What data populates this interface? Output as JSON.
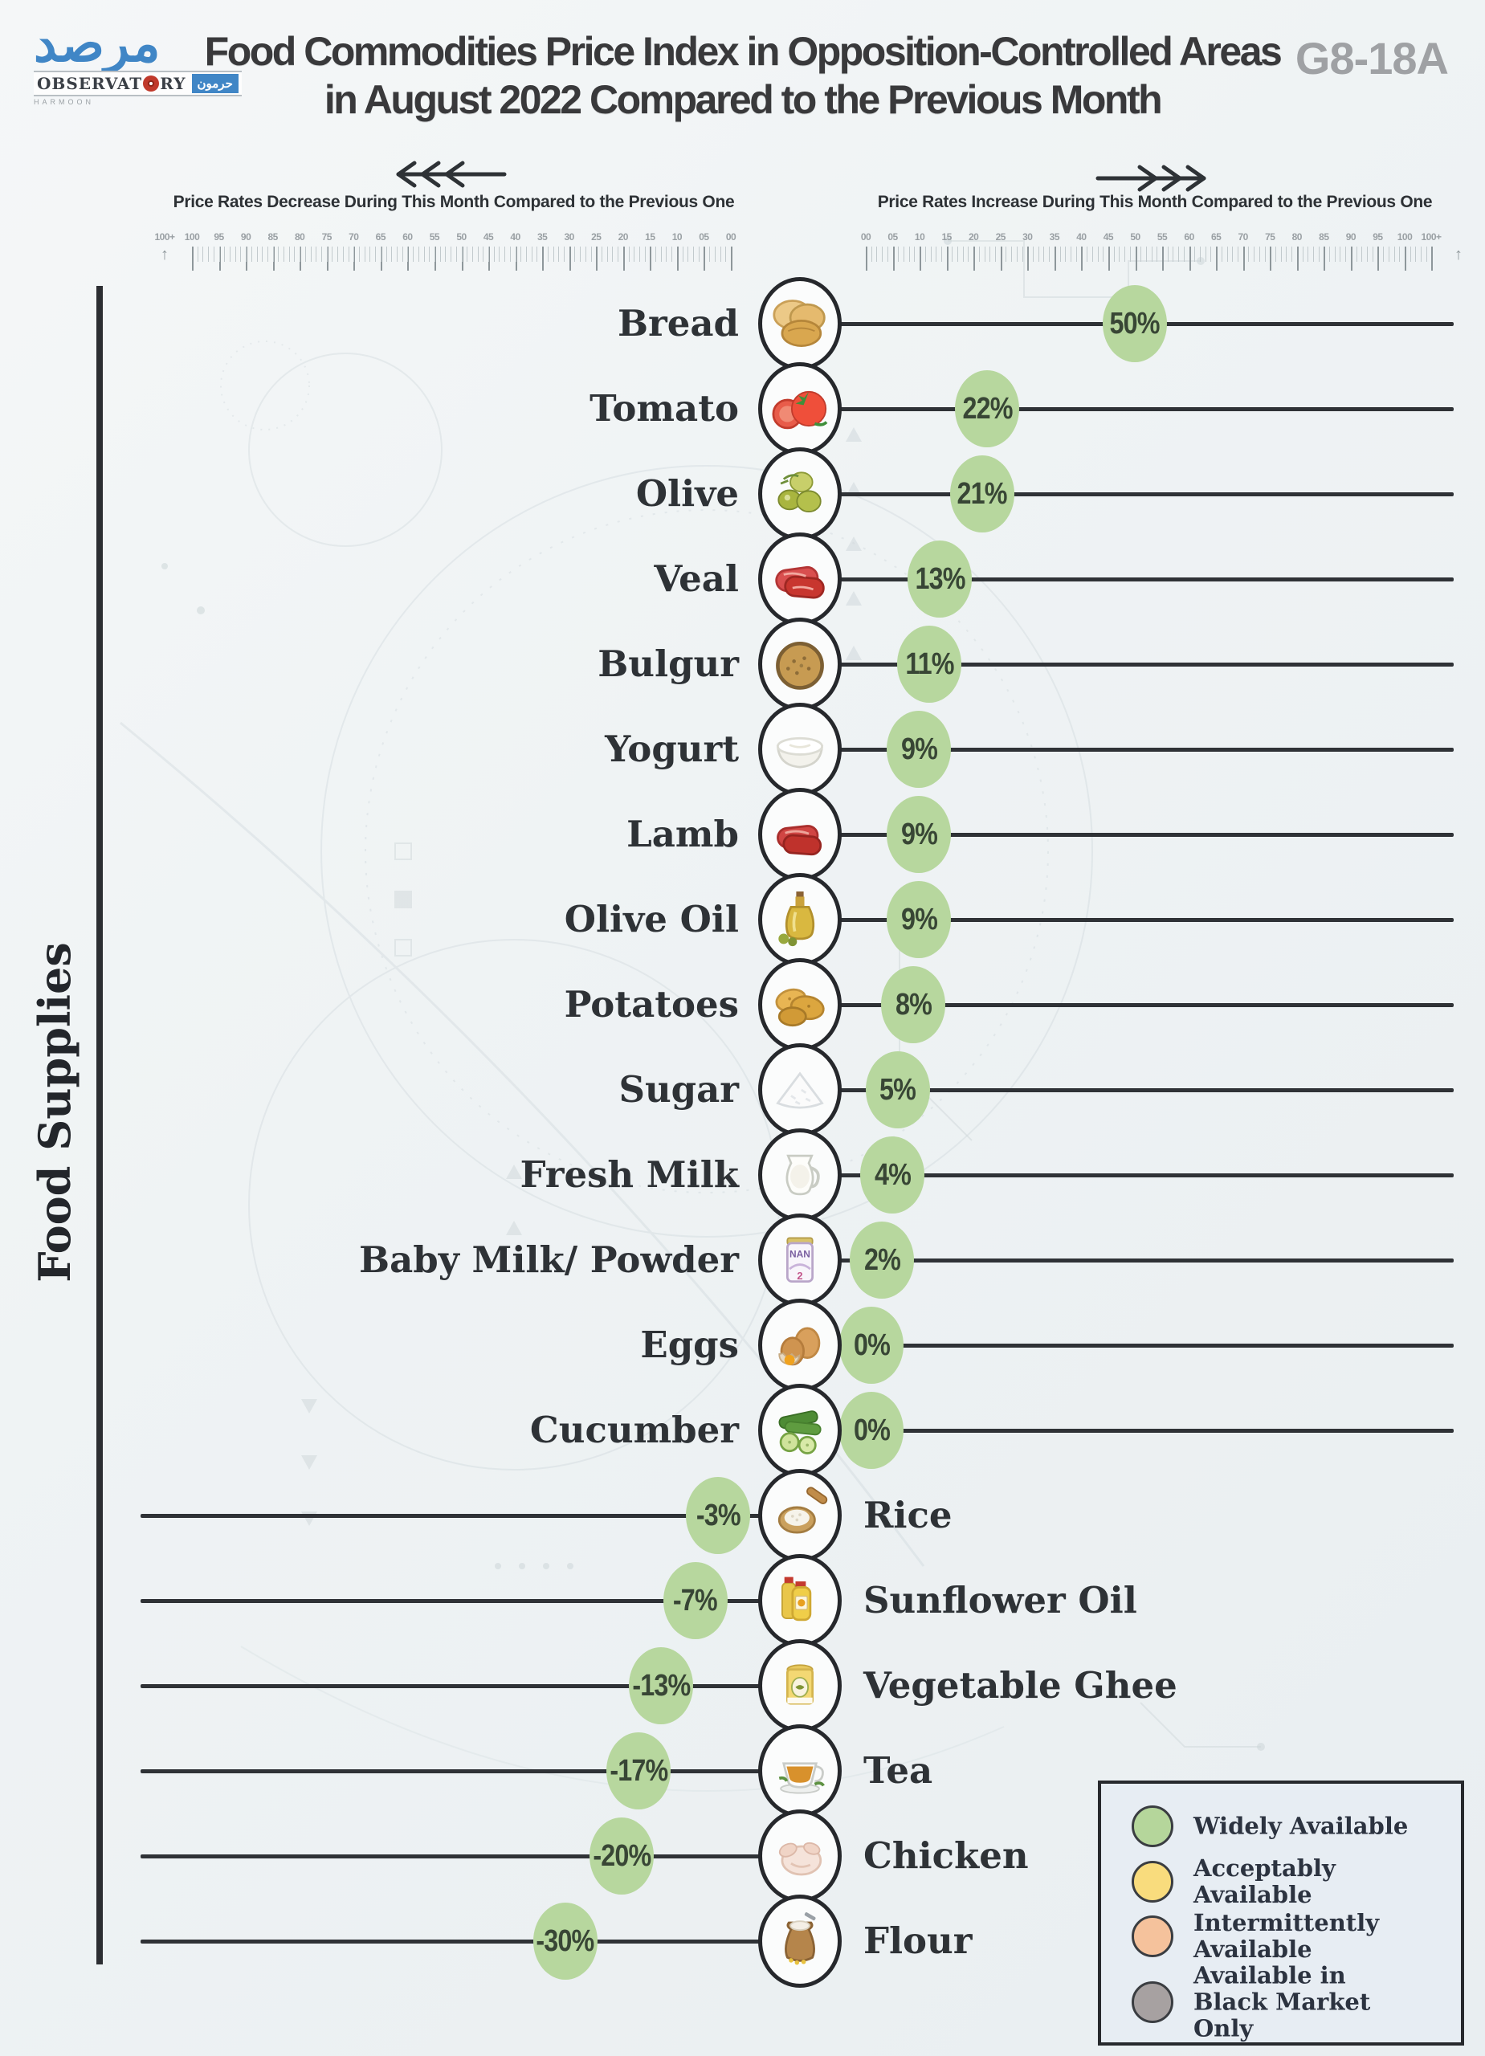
{
  "header": {
    "logo_arabic": "مرصد",
    "logo_observatory_left": "OBSERVAT",
    "logo_observatory_right": "RY",
    "logo_box_arabic": "حرمون",
    "logo_sub": "HARMOON",
    "title_line1": "Food  Commodities Price Index in Opposition-Controlled Areas",
    "title_line2": "in August 2022 Compared to the Previous Month",
    "code": "G8-18A"
  },
  "axis": {
    "decrease_label": "Price Rates Decrease During This Month Compared to the Previous One",
    "increase_label": "Price Rates Increase During This Month Compared to the Previous One",
    "left_ticks": [
      "100+",
      "100",
      "95",
      "90",
      "85",
      "80",
      "75",
      "70",
      "65",
      "60",
      "55",
      "50",
      "45",
      "40",
      "35",
      "30",
      "25",
      "20",
      "15",
      "10",
      "05",
      "00"
    ],
    "right_ticks": [
      "00",
      "05",
      "10",
      "15",
      "20",
      "25",
      "30",
      "35",
      "40",
      "45",
      "50",
      "55",
      "60",
      "65",
      "70",
      "75",
      "80",
      "85",
      "90",
      "95",
      "100",
      "100+"
    ],
    "y_axis_title": "Food Supplies"
  },
  "items": [
    {
      "label": "Bread",
      "display": "50%",
      "value": 50,
      "icon": "bread-icon",
      "availability": "Widely Available"
    },
    {
      "label": "Tomato",
      "display": "22%",
      "value": 22,
      "icon": "tomato-icon",
      "availability": "Widely Available"
    },
    {
      "label": "Olive",
      "display": "21%",
      "value": 21,
      "icon": "olive-icon",
      "availability": "Widely Available"
    },
    {
      "label": "Veal",
      "display": "13%",
      "value": 13,
      "icon": "veal-icon",
      "availability": "Widely Available"
    },
    {
      "label": "Bulgur",
      "display": "11%",
      "value": 11,
      "icon": "bulgur-icon",
      "availability": "Widely Available"
    },
    {
      "label": "Yogurt",
      "display": "9%",
      "value": 9,
      "icon": "yogurt-icon",
      "availability": "Widely Available"
    },
    {
      "label": "Lamb",
      "display": "9%",
      "value": 9,
      "icon": "lamb-icon",
      "availability": "Widely Available"
    },
    {
      "label": "Olive Oil",
      "display": "9%",
      "value": 9,
      "icon": "olive-oil-icon",
      "availability": "Widely Available"
    },
    {
      "label": "Potatoes",
      "display": "8%",
      "value": 8,
      "icon": "potatoes-icon",
      "availability": "Widely Available"
    },
    {
      "label": "Sugar",
      "display": "5%",
      "value": 5,
      "icon": "sugar-icon",
      "availability": "Widely Available"
    },
    {
      "label": "Fresh Milk",
      "display": "4%",
      "value": 4,
      "icon": "fresh-milk-icon",
      "availability": "Widely Available"
    },
    {
      "label": "Baby Milk/ Powder",
      "display": "2%",
      "value": 2,
      "icon": "baby-milk-icon",
      "availability": "Widely Available"
    },
    {
      "label": "Eggs",
      "display": "0%",
      "value": 0,
      "icon": "eggs-icon",
      "availability": "Widely Available"
    },
    {
      "label": "Cucumber",
      "display": "0%",
      "value": 0,
      "icon": "cucumber-icon",
      "availability": "Widely Available"
    },
    {
      "label": "Rice",
      "display": "-3%",
      "value": -3,
      "icon": "rice-icon",
      "availability": "Widely Available"
    },
    {
      "label": "Sunflower Oil",
      "display": "-7%",
      "value": -7,
      "icon": "sunflower-oil-icon",
      "availability": "Widely Available"
    },
    {
      "label": "Vegetable Ghee",
      "display": "-13%",
      "value": -13,
      "icon": "vegetable-ghee-icon",
      "availability": "Widely Available"
    },
    {
      "label": "Tea",
      "display": "-17%",
      "value": -17,
      "icon": "tea-icon",
      "availability": "Widely Available"
    },
    {
      "label": "Chicken",
      "display": "-20%",
      "value": -20,
      "icon": "chicken-icon",
      "availability": "Widely Available"
    },
    {
      "label": "Flour",
      "display": "-30%",
      "value": -30,
      "icon": "flour-icon",
      "availability": "Widely Available"
    }
  ],
  "legend": {
    "items": [
      {
        "label": "Widely Available",
        "color": "#b5d69b"
      },
      {
        "label": "Acceptably Available",
        "color": "#f9dc7d"
      },
      {
        "label": "Intermittently Available",
        "color": "#f5c29c"
      },
      {
        "label": "Available in Black Market Only",
        "color": "#a7a1a1"
      }
    ]
  },
  "colors": {
    "badge_green": "#b7d79e",
    "line": "#2f3236",
    "circle_stroke": "#26282c",
    "accent_blue": "#4086c6",
    "title_gray": "#39393b",
    "code_gray": "#9fa1a4"
  },
  "chart_data": {
    "type": "bar",
    "title": "Food  Commodities Price Index in Opposition-Controlled Areas in August 2022 Compared to the Previous Month",
    "ylabel": "Food Supplies",
    "unit": "%",
    "xlim": [
      -100,
      100
    ],
    "axis_tick_step": 5,
    "legend_position": "bottom-right",
    "categories": [
      "Bread",
      "Tomato",
      "Olive",
      "Veal",
      "Bulgur",
      "Yogurt",
      "Lamb",
      "Olive Oil",
      "Potatoes",
      "Sugar",
      "Fresh Milk",
      "Baby Milk/ Powder",
      "Eggs",
      "Cucumber",
      "Rice",
      "Sunflower Oil",
      "Vegetable Ghee",
      "Tea",
      "Chicken",
      "Flour"
    ],
    "values": [
      50,
      22,
      21,
      13,
      11,
      9,
      9,
      9,
      8,
      5,
      4,
      2,
      0,
      0,
      -3,
      -7,
      -13,
      -17,
      -20,
      -30
    ],
    "availability": [
      "Widely Available",
      "Widely Available",
      "Widely Available",
      "Widely Available",
      "Widely Available",
      "Widely Available",
      "Widely Available",
      "Widely Available",
      "Widely Available",
      "Widely Available",
      "Widely Available",
      "Widely Available",
      "Widely Available",
      "Widely Available",
      "Widely Available",
      "Widely Available",
      "Widely Available",
      "Widely Available",
      "Widely Available",
      "Widely Available"
    ]
  }
}
